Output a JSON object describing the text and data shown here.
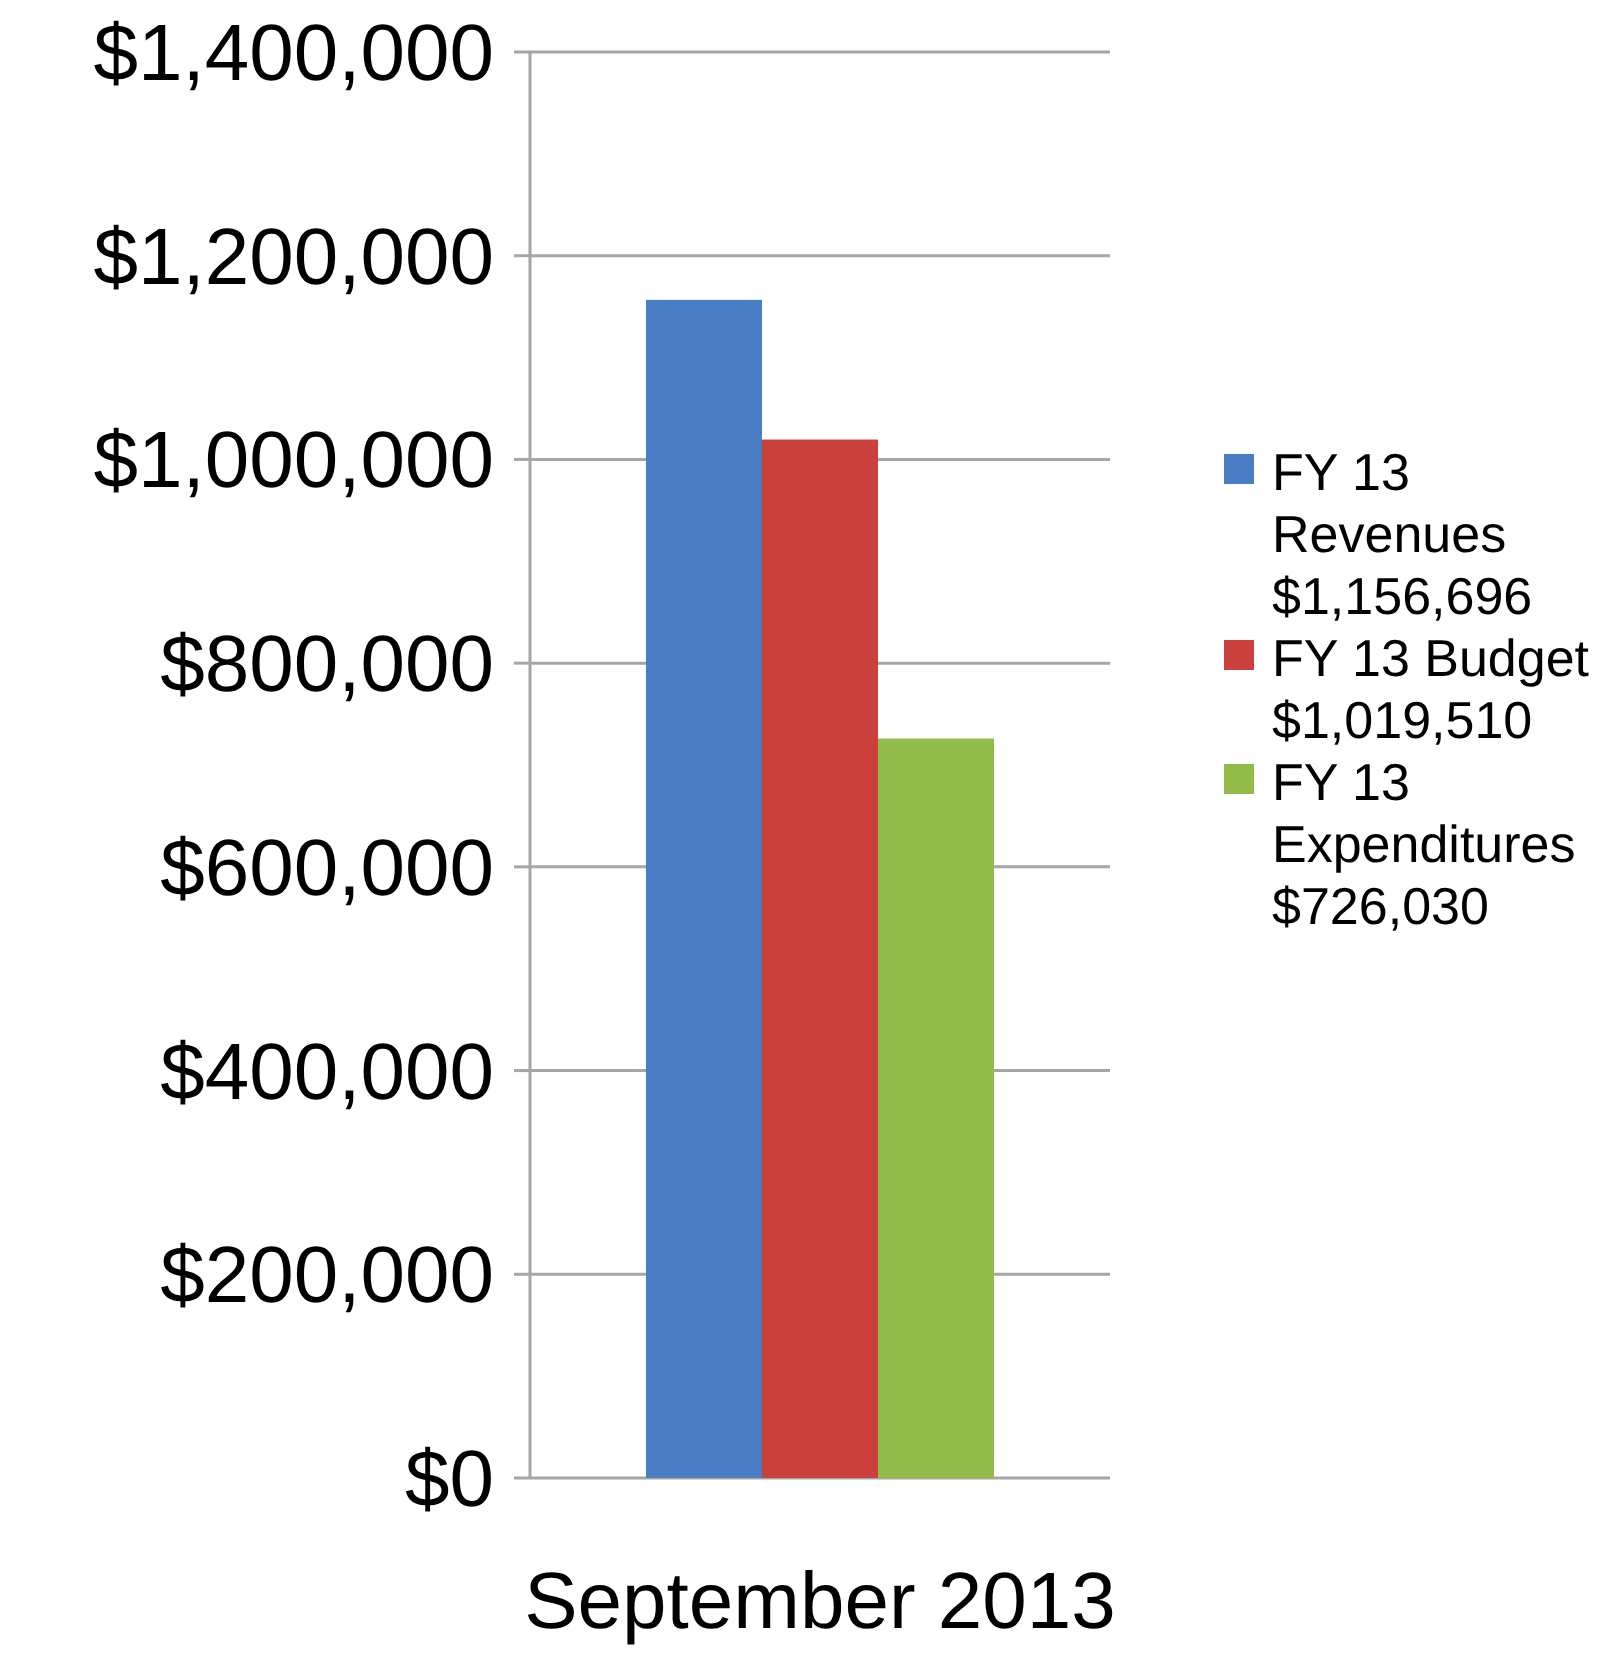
{
  "chart_data": {
    "type": "bar",
    "categories": [
      "September 2013"
    ],
    "series": [
      {
        "name": "FY 13 Revenues $1,156,696",
        "color": "#4a7ec4",
        "values": [
          1156696
        ]
      },
      {
        "name": "FY 13 Budget $1,019,510",
        "color": "#c9403c",
        "values": [
          1019510
        ]
      },
      {
        "name": "FY 13 Expenditures $726,030",
        "color": "#93bb4a",
        "values": [
          726030
        ]
      }
    ],
    "ylim": [
      0,
      1400000
    ],
    "yticks": [
      {
        "value": 0,
        "label": "$0"
      },
      {
        "value": 200000,
        "label": "$200,000"
      },
      {
        "value": 400000,
        "label": "$400,000"
      },
      {
        "value": 600000,
        "label": "$600,000"
      },
      {
        "value": 800000,
        "label": "$800,000"
      },
      {
        "value": 1000000,
        "label": "$1,000,000"
      },
      {
        "value": 1200000,
        "label": "$1,200,000"
      },
      {
        "value": 1400000,
        "label": "$1,400,000"
      }
    ],
    "grid": "y",
    "legend": "right"
  }
}
